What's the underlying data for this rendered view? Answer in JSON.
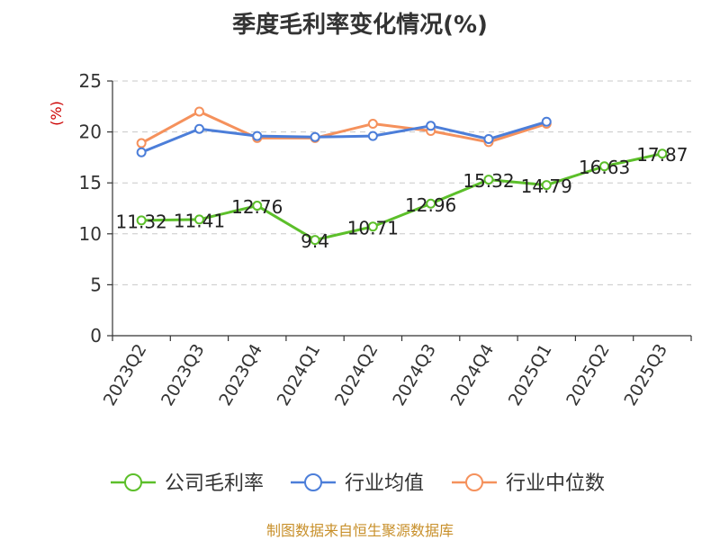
{
  "chart_data": {
    "type": "line",
    "title": "季度毛利率变化情况(%)",
    "ylabel": "(%)",
    "ylim": [
      0,
      25
    ],
    "yticks": [
      0,
      5,
      10,
      15,
      20,
      25
    ],
    "grid": true,
    "legend_position": "bottom",
    "categories": [
      "2023Q2",
      "2023Q3",
      "2023Q4",
      "2024Q1",
      "2024Q2",
      "2024Q3",
      "2024Q4",
      "2025Q1",
      "2025Q2",
      "2025Q3"
    ],
    "series": [
      {
        "name": "公司毛利率",
        "color": "#5cbf2a",
        "show_labels": true,
        "values": [
          11.32,
          11.41,
          12.76,
          9.4,
          10.71,
          12.96,
          15.32,
          14.79,
          16.63,
          17.87
        ]
      },
      {
        "name": "行业均值",
        "color": "#4c7ed9",
        "show_labels": false,
        "values": [
          18.0,
          20.3,
          19.6,
          19.5,
          19.6,
          20.6,
          19.3,
          21.0,
          null,
          null
        ]
      },
      {
        "name": "行业中位数",
        "color": "#f5915c",
        "show_labels": false,
        "values": [
          18.9,
          22.0,
          19.4,
          19.4,
          20.8,
          20.1,
          19.0,
          20.8,
          null,
          null
        ]
      }
    ]
  },
  "source": "制图数据来自恒生聚源数据库"
}
